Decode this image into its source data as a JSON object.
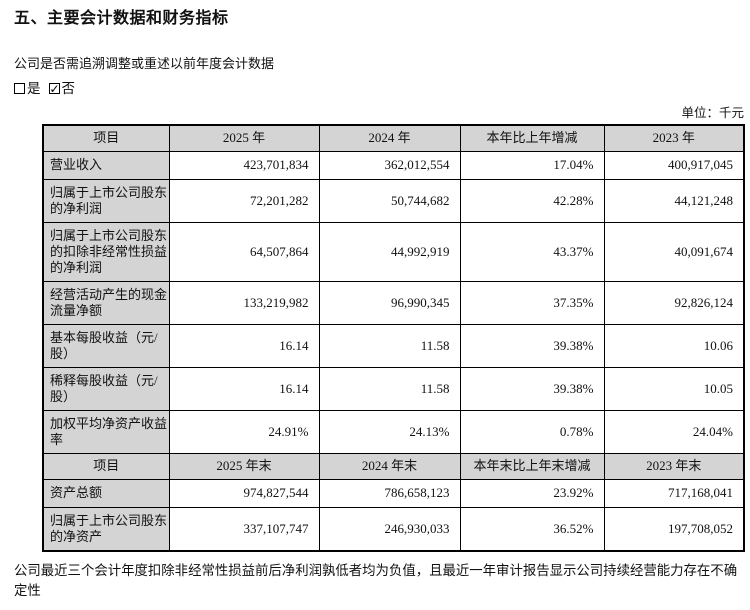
{
  "page": {
    "title": "五、主要会计数据和财务指标",
    "restate_question": "公司是否需追溯调整或重述以前年度会计数据",
    "unit_label": "单位：千元",
    "going_concern_statement": "公司最近三个会计年度扣除非经常性损益前后净利润孰低者均为负值，且最近一年审计报告显示公司持续经营能力存在不确定性",
    "checkboxes": {
      "yes_label": "是",
      "no_label": "否",
      "top": {
        "yes_checked": false,
        "no_checked": true
      },
      "bottom": {
        "yes_checked": false,
        "no_checked": true
      }
    }
  },
  "table": {
    "sections": [
      {
        "header": [
          "项目",
          "2025 年",
          "2024 年",
          "本年比上年增减",
          "2023 年"
        ],
        "rows": [
          [
            "营业收入",
            "423,701,834",
            "362,012,554",
            "17.04%",
            "400,917,045"
          ],
          [
            "归属于上市公司股东的净利润",
            "72,201,282",
            "50,744,682",
            "42.28%",
            "44,121,248"
          ],
          [
            "归属于上市公司股东的扣除非经常性损益的净利润",
            "64,507,864",
            "44,992,919",
            "43.37%",
            "40,091,674"
          ],
          [
            "经营活动产生的现金流量净额",
            "133,219,982",
            "96,990,345",
            "37.35%",
            "92,826,124"
          ],
          [
            "基本每股收益（元/股）",
            "16.14",
            "11.58",
            "39.38%",
            "10.06"
          ],
          [
            "稀释每股收益（元/股）",
            "16.14",
            "11.58",
            "39.38%",
            "10.05"
          ],
          [
            "加权平均净资产收益率",
            "24.91%",
            "24.13%",
            "0.78%",
            "24.04%"
          ]
        ]
      },
      {
        "header": [
          "项目",
          "2025 年末",
          "2024 年末",
          "本年末比上年末增减",
          "2023 年末"
        ],
        "rows": [
          [
            "资产总额",
            "974,827,544",
            "786,658,123",
            "23.92%",
            "717,168,041"
          ],
          [
            "归属于上市公司股东的净资产",
            "337,107,747",
            "246,930,033",
            "36.52%",
            "197,708,052"
          ]
        ]
      }
    ]
  }
}
